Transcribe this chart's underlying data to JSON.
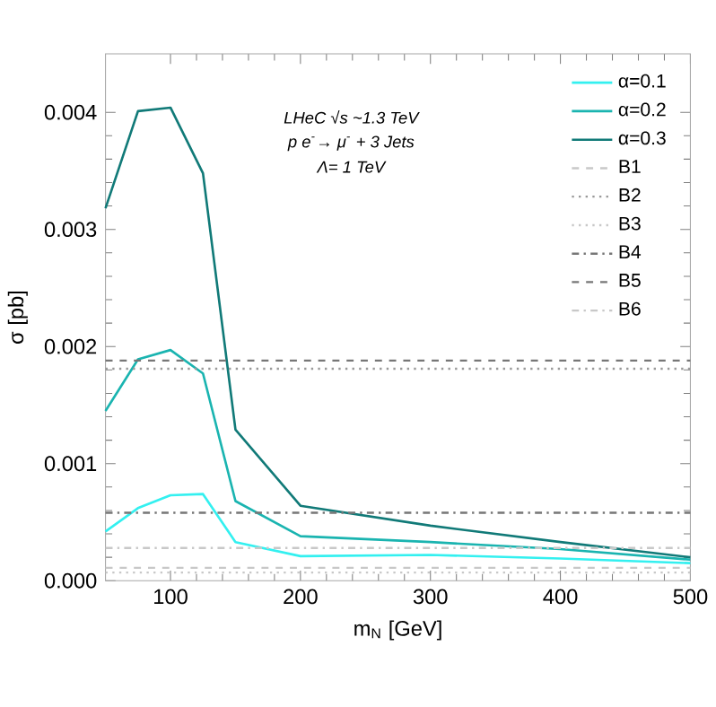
{
  "chart_data": {
    "type": "line",
    "xlabel": "m$_{N}$ [GeV]",
    "ylabel": "σ [pb]",
    "annotations": [
      "LHeC √s ~1.3 TeV",
      "p e$^{-}$→ μ$^{-}$ + 3 Jets",
      "Λ= 1 TeV"
    ],
    "x": [
      50,
      75,
      100,
      125,
      150,
      200,
      300,
      400,
      500
    ],
    "series": [
      {
        "name": "α=0.1",
        "color": "#33f0f0",
        "values": [
          0.00042,
          0.00062,
          0.00073,
          0.00074,
          0.00033,
          0.00021,
          0.00022,
          0.00019,
          0.00015
        ]
      },
      {
        "name": "α=0.2",
        "color": "#1ab4b0",
        "values": [
          0.00145,
          0.00189,
          0.00197,
          0.00177,
          0.00068,
          0.00038,
          0.00033,
          0.00027,
          0.00018
        ]
      },
      {
        "name": "α=0.3",
        "color": "#117a78",
        "values": [
          0.00318,
          0.00401,
          0.00404,
          0.00348,
          0.00129,
          0.00064,
          0.00047,
          0.00033,
          0.0002
        ]
      }
    ],
    "ref_lines": [
      {
        "axis": "y",
        "value": 0.00011,
        "label": "B1",
        "color": "#c8c8c8",
        "line_style": "dashed"
      },
      {
        "axis": "y",
        "value": 0.00181,
        "label": "B2",
        "color": "#999999",
        "line_style": "dotted"
      },
      {
        "axis": "y",
        "value": 7e-05,
        "label": "B3",
        "color": "#c8c8c8",
        "line_style": "dotted"
      },
      {
        "axis": "y",
        "value": 0.00058,
        "label": "B4",
        "color": "#777777",
        "line_style": "dashdot"
      },
      {
        "axis": "y",
        "value": 0.00188,
        "label": "B5",
        "color": "#777777",
        "line_style": "dashed"
      },
      {
        "axis": "y",
        "value": 0.00028,
        "label": "B6",
        "color": "#c8c8c8",
        "line_style": "dashdot"
      }
    ],
    "xlim": [
      50,
      500
    ],
    "ylim": [
      0,
      0.0045
    ],
    "xticks": [
      100,
      200,
      300,
      400,
      500
    ],
    "yticks": [
      {
        "value": 0,
        "label": "0.000"
      },
      {
        "value": 0.001,
        "label": "0.001"
      },
      {
        "value": 0.002,
        "label": "0.002"
      },
      {
        "value": 0.003,
        "label": "0.003"
      },
      {
        "value": 0.004,
        "label": "0.004"
      }
    ],
    "grid": false,
    "legend": "top right",
    "line_style": "solid",
    "marker": "none"
  }
}
